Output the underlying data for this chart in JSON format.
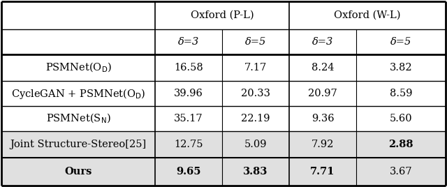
{
  "col_headers_top": [
    "Oxford (P-L)",
    "Oxford (W-L)"
  ],
  "col_headers_sub": [
    "δ=3",
    "δ=5",
    "δ=3",
    "δ=5"
  ],
  "rows": [
    {
      "label": "PSMNet(O$_D$)",
      "values": [
        "16.58",
        "7.17",
        "8.24",
        "3.82"
      ],
      "bold_row": false,
      "gray_bg": false,
      "bold_cells": []
    },
    {
      "label": "CycleGAN + PSMNet(O$_D$)",
      "values": [
        "39.96",
        "20.33",
        "20.97",
        "8.59"
      ],
      "bold_row": false,
      "gray_bg": false,
      "bold_cells": []
    },
    {
      "label": "PSMNet(S$_N$)",
      "values": [
        "35.17",
        "22.19",
        "9.36",
        "5.60"
      ],
      "bold_row": false,
      "gray_bg": false,
      "bold_cells": []
    },
    {
      "label": "Joint Structure-Stereo[25]",
      "values": [
        "12.75",
        "5.09",
        "7.92",
        "2.88"
      ],
      "bold_row": false,
      "gray_bg": true,
      "bold_cells": [
        3
      ]
    },
    {
      "label": "Ours",
      "values": [
        "9.65",
        "3.83",
        "7.71",
        "3.67"
      ],
      "bold_row": true,
      "gray_bg": true,
      "bold_cells": [
        0,
        1,
        2
      ]
    }
  ],
  "bg_color": "#ffffff",
  "gray_color": "#e0e0e0",
  "line_color": "#000000",
  "font_size": 10.5
}
